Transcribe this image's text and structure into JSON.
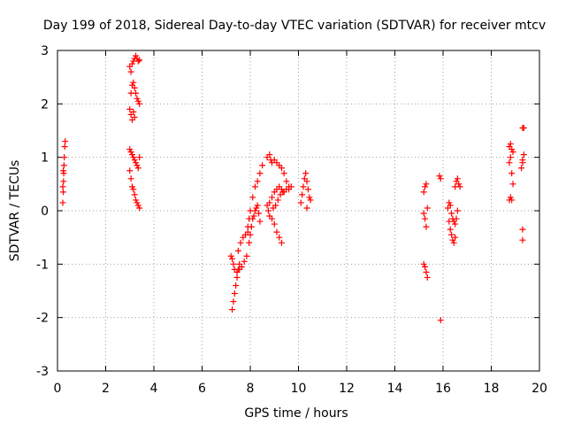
{
  "chart_data": {
    "type": "scatter",
    "title": "Day 199 of 2018, Sidereal Day-to-day VTEC variation (SDTVAR) for receiver mtcv",
    "xlabel": "GPS time / hours",
    "ylabel": "SDTVAR / TECUs",
    "xlim": [
      0,
      20
    ],
    "ylim": [
      -3,
      3
    ],
    "xticks": [
      0,
      2,
      4,
      6,
      8,
      10,
      12,
      14,
      16,
      18,
      20
    ],
    "yticks": [
      -3,
      -2,
      -1,
      0,
      1,
      2,
      3
    ],
    "grid": true,
    "marker": "+",
    "color": "#ff0000",
    "series": [
      {
        "name": "SDTVAR",
        "points": [
          [
            0.22,
            0.15
          ],
          [
            0.24,
            0.35
          ],
          [
            0.25,
            0.55
          ],
          [
            0.26,
            0.7
          ],
          [
            0.27,
            0.85
          ],
          [
            0.28,
            1.0
          ],
          [
            0.3,
            1.2
          ],
          [
            0.32,
            1.3
          ],
          [
            0.22,
            0.45
          ],
          [
            0.24,
            0.75
          ],
          [
            3.0,
            2.7
          ],
          [
            3.05,
            2.6
          ],
          [
            3.1,
            2.75
          ],
          [
            3.15,
            2.8
          ],
          [
            3.2,
            2.85
          ],
          [
            3.25,
            2.9
          ],
          [
            3.3,
            2.85
          ],
          [
            3.35,
            2.8
          ],
          [
            3.4,
            2.82
          ],
          [
            3.05,
            2.2
          ],
          [
            3.1,
            2.35
          ],
          [
            3.15,
            2.4
          ],
          [
            3.2,
            2.3
          ],
          [
            3.25,
            2.2
          ],
          [
            3.3,
            2.1
          ],
          [
            3.35,
            2.05
          ],
          [
            3.4,
            2.0
          ],
          [
            3.0,
            1.9
          ],
          [
            3.05,
            1.8
          ],
          [
            3.1,
            1.7
          ],
          [
            3.15,
            1.85
          ],
          [
            3.2,
            1.75
          ],
          [
            3.0,
            1.15
          ],
          [
            3.05,
            1.1
          ],
          [
            3.1,
            1.05
          ],
          [
            3.15,
            1.0
          ],
          [
            3.2,
            0.95
          ],
          [
            3.25,
            0.9
          ],
          [
            3.3,
            0.85
          ],
          [
            3.35,
            0.8
          ],
          [
            3.4,
            1.0
          ],
          [
            3.0,
            0.75
          ],
          [
            3.05,
            0.6
          ],
          [
            3.1,
            0.45
          ],
          [
            3.15,
            0.4
          ],
          [
            3.2,
            0.3
          ],
          [
            3.25,
            0.2
          ],
          [
            3.3,
            0.15
          ],
          [
            3.35,
            0.1
          ],
          [
            3.4,
            0.05
          ],
          [
            7.25,
            -1.85
          ],
          [
            7.3,
            -1.7
          ],
          [
            7.35,
            -1.55
          ],
          [
            7.4,
            -1.4
          ],
          [
            7.45,
            -1.25
          ],
          [
            7.5,
            -1.1
          ],
          [
            7.55,
            -1.0
          ],
          [
            7.2,
            -0.85
          ],
          [
            7.25,
            -0.9
          ],
          [
            7.3,
            -1.0
          ],
          [
            7.35,
            -1.1
          ],
          [
            7.45,
            -1.15
          ],
          [
            7.55,
            -1.1
          ],
          [
            7.65,
            -1.05
          ],
          [
            7.75,
            -0.95
          ],
          [
            7.85,
            -0.85
          ],
          [
            7.5,
            -0.75
          ],
          [
            7.6,
            -0.6
          ],
          [
            7.7,
            -0.5
          ],
          [
            7.8,
            -0.45
          ],
          [
            7.9,
            -0.4
          ],
          [
            7.95,
            -0.6
          ],
          [
            8.0,
            -0.45
          ],
          [
            8.05,
            -0.3
          ],
          [
            8.1,
            -0.15
          ],
          [
            8.15,
            -0.1
          ],
          [
            8.2,
            0.0
          ],
          [
            8.25,
            0.05
          ],
          [
            8.3,
            0.1
          ],
          [
            8.35,
            -0.05
          ],
          [
            8.4,
            -0.2
          ],
          [
            7.9,
            -0.3
          ],
          [
            7.95,
            -0.15
          ],
          [
            8.0,
            0.0
          ],
          [
            8.1,
            0.25
          ],
          [
            8.2,
            0.45
          ],
          [
            8.3,
            0.55
          ],
          [
            8.4,
            0.7
          ],
          [
            8.5,
            0.85
          ],
          [
            8.7,
            0.1
          ],
          [
            8.75,
            0.0
          ],
          [
            8.8,
            -0.1
          ],
          [
            8.9,
            -0.15
          ],
          [
            9.0,
            -0.25
          ],
          [
            9.1,
            -0.4
          ],
          [
            9.2,
            -0.5
          ],
          [
            9.3,
            -0.6
          ],
          [
            8.7,
            1.0
          ],
          [
            8.8,
            1.05
          ],
          [
            8.85,
            0.95
          ],
          [
            8.9,
            0.9
          ],
          [
            9.0,
            0.95
          ],
          [
            9.1,
            0.9
          ],
          [
            9.2,
            0.85
          ],
          [
            9.3,
            0.8
          ],
          [
            9.4,
            0.7
          ],
          [
            9.5,
            0.55
          ],
          [
            9.6,
            0.4
          ],
          [
            8.8,
            0.15
          ],
          [
            8.9,
            0.25
          ],
          [
            9.0,
            0.35
          ],
          [
            9.1,
            0.4
          ],
          [
            9.2,
            0.45
          ],
          [
            9.3,
            0.4
          ],
          [
            9.4,
            0.35
          ],
          [
            9.5,
            0.4
          ],
          [
            9.6,
            0.45
          ],
          [
            9.7,
            0.45
          ],
          [
            8.95,
            0.05
          ],
          [
            9.05,
            0.1
          ],
          [
            9.15,
            0.2
          ],
          [
            9.25,
            0.3
          ],
          [
            9.35,
            0.35
          ],
          [
            10.1,
            0.15
          ],
          [
            10.15,
            0.3
          ],
          [
            10.2,
            0.45
          ],
          [
            10.25,
            0.6
          ],
          [
            10.3,
            0.7
          ],
          [
            10.35,
            0.55
          ],
          [
            10.4,
            0.4
          ],
          [
            10.45,
            0.25
          ],
          [
            10.5,
            0.2
          ],
          [
            10.35,
            0.05
          ],
          [
            15.2,
            0.35
          ],
          [
            15.25,
            0.45
          ],
          [
            15.3,
            0.5
          ],
          [
            15.2,
            -0.05
          ],
          [
            15.25,
            -0.15
          ],
          [
            15.3,
            -0.3
          ],
          [
            15.35,
            0.05
          ],
          [
            15.2,
            -1.0
          ],
          [
            15.25,
            -1.05
          ],
          [
            15.3,
            -1.15
          ],
          [
            15.35,
            -1.25
          ],
          [
            15.85,
            0.65
          ],
          [
            15.9,
            0.6
          ],
          [
            15.9,
            -2.05
          ],
          [
            16.2,
            0.05
          ],
          [
            16.25,
            0.15
          ],
          [
            16.3,
            0.1
          ],
          [
            16.35,
            -0.05
          ],
          [
            16.4,
            -0.15
          ],
          [
            16.45,
            -0.2
          ],
          [
            16.5,
            -0.25
          ],
          [
            16.25,
            -0.2
          ],
          [
            16.3,
            -0.35
          ],
          [
            16.35,
            -0.45
          ],
          [
            16.4,
            -0.55
          ],
          [
            16.45,
            -0.6
          ],
          [
            16.5,
            -0.5
          ],
          [
            16.5,
            0.45
          ],
          [
            16.55,
            0.55
          ],
          [
            16.6,
            0.6
          ],
          [
            16.65,
            0.5
          ],
          [
            16.7,
            0.45
          ],
          [
            16.6,
            0.0
          ],
          [
            16.55,
            -0.15
          ],
          [
            18.75,
            0.2
          ],
          [
            18.8,
            0.25
          ],
          [
            18.85,
            0.2
          ],
          [
            18.75,
            1.2
          ],
          [
            18.8,
            1.25
          ],
          [
            18.85,
            1.15
          ],
          [
            18.9,
            1.1
          ],
          [
            18.75,
            0.9
          ],
          [
            18.8,
            1.0
          ],
          [
            18.85,
            0.7
          ],
          [
            18.9,
            0.5
          ],
          [
            19.25,
            0.8
          ],
          [
            19.3,
            0.9
          ],
          [
            19.35,
            1.05
          ],
          [
            19.3,
            0.95
          ],
          [
            19.3,
            1.55
          ],
          [
            19.35,
            1.55
          ],
          [
            19.3,
            -0.35
          ],
          [
            19.3,
            -0.55
          ]
        ]
      }
    ]
  }
}
